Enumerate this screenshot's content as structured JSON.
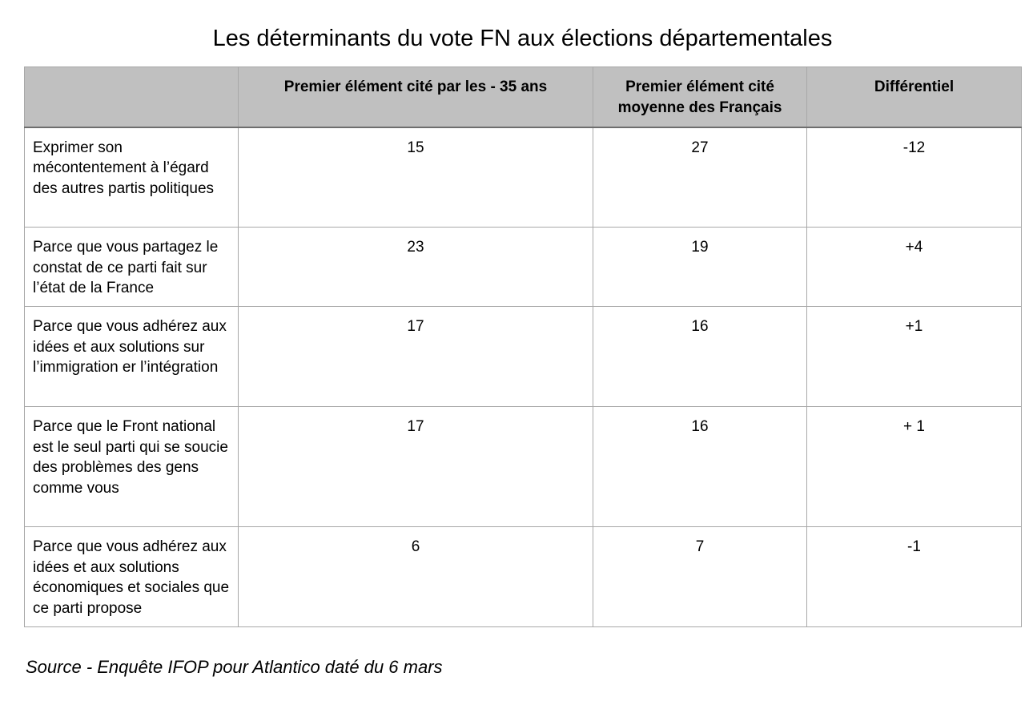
{
  "title": "Les déterminants du vote FN aux élections départementales",
  "source": "Source - Enquête IFOP pour Atlantico daté du 6 mars",
  "chart_data": {
    "type": "table",
    "title": "Les déterminants du vote FN aux élections départementales",
    "columns": [
      "",
      "Premier élément cité par les - 35 ans",
      "Premier élément cité moyenne des Français",
      "Différentiel"
    ],
    "rows": [
      {
        "label": "Exprimer son mécontentement à l’égard des autres partis politiques",
        "values": [
          "15",
          "27",
          "-12"
        ]
      },
      {
        "label": "Parce que vous partagez le constat de ce parti fait sur l’état de la France",
        "values": [
          "23",
          "19",
          "+4"
        ]
      },
      {
        "label": "Parce que vous adhérez aux idées et aux solutions sur l’immigration er l’intégration",
        "values": [
          "17",
          "16",
          "+1"
        ]
      },
      {
        "label": "Parce que le Front national est le seul parti qui se soucie des problèmes des gens comme vous",
        "values": [
          "17",
          "16",
          "+ 1"
        ]
      },
      {
        "label": "Parce que vous adhérez aux idées et aux solutions économiques et sociales que ce parti propose",
        "values": [
          "6",
          "7",
          "-1"
        ]
      }
    ]
  }
}
